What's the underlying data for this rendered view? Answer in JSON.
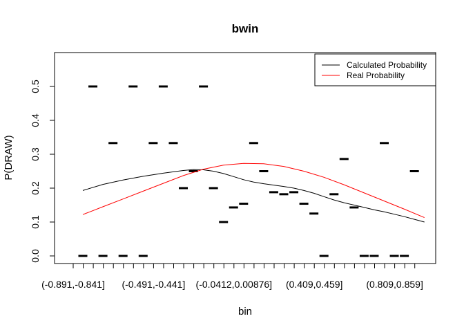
{
  "chart_data": {
    "type": "line",
    "title": "bwin",
    "xlabel": "bin",
    "ylabel": "P(DRAW)",
    "ylim": [
      0,
      0.5
    ],
    "yticks": [
      "0.0",
      "0.1",
      "0.2",
      "0.3",
      "0.4",
      "0.5"
    ],
    "x_tick_labels": [
      "(-0.891,-0.841]",
      "(-0.491,-0.441]",
      "(-0.0412,0.00876]",
      "(0.409,0.459]",
      "(0.809,0.859]"
    ],
    "x_tick_label_positions": [
      1,
      9,
      17,
      25,
      33
    ],
    "num_bins": 35,
    "grid": false,
    "legend": {
      "placement": "top-right",
      "entries": [
        {
          "label": "Calculated Probability",
          "color": "#000000"
        },
        {
          "label": "Real Probability",
          "color": "#ff0000"
        }
      ]
    },
    "bin_values": [
      0,
      0.5,
      0,
      0.333,
      0,
      0.5,
      0,
      0.333,
      0.5,
      0.333,
      0.2,
      0.25,
      0.5,
      0.2,
      0.1,
      0.143,
      0.154,
      0.333,
      0.25,
      0.188,
      0.182,
      0.188,
      0.154,
      0.125,
      0,
      0.182,
      0.286,
      0.143,
      0,
      0,
      0.333,
      0,
      0,
      0.25,
      null
    ],
    "series": [
      {
        "name": "Calculated Probability",
        "color": "#000000",
        "x": [
          1,
          3,
          5,
          7,
          9,
          11,
          12,
          13,
          14,
          15,
          16,
          17,
          18,
          19,
          20,
          21,
          22,
          23,
          24,
          25,
          26,
          27,
          28,
          29,
          30,
          31,
          32,
          33,
          34,
          35
        ],
        "values": [
          0.193,
          0.211,
          0.224,
          0.235,
          0.244,
          0.252,
          0.255,
          0.254,
          0.25,
          0.243,
          0.234,
          0.225,
          0.218,
          0.213,
          0.209,
          0.205,
          0.2,
          0.193,
          0.185,
          0.175,
          0.165,
          0.157,
          0.15,
          0.143,
          0.136,
          0.13,
          0.123,
          0.116,
          0.108,
          0.1
        ]
      },
      {
        "name": "Real Probability",
        "color": "#ff0000",
        "x": [
          1,
          3,
          5,
          7,
          9,
          11,
          13,
          15,
          17,
          19,
          21,
          23,
          25,
          27,
          29,
          31,
          33,
          35
        ],
        "values": [
          0.122,
          0.145,
          0.168,
          0.191,
          0.214,
          0.237,
          0.256,
          0.268,
          0.273,
          0.272,
          0.264,
          0.25,
          0.232,
          0.21,
          0.186,
          0.162,
          0.138,
          0.113
        ]
      }
    ]
  }
}
